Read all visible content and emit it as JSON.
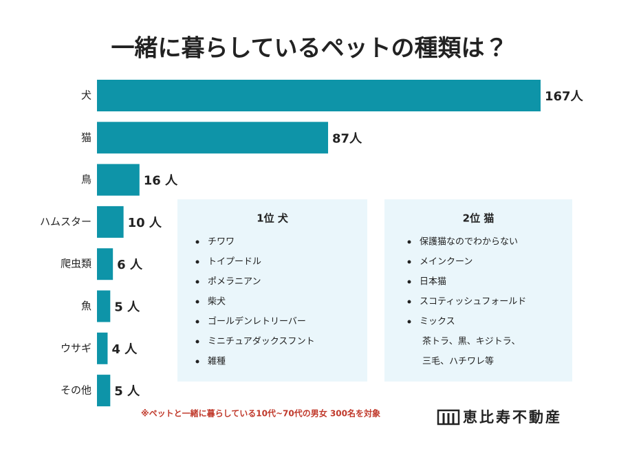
{
  "chart_data": {
    "type": "bar",
    "orientation": "horizontal",
    "title": "一緒に暮らしているペットの種類は？",
    "categories": [
      "犬",
      "猫",
      "鳥",
      "ハムスター",
      "爬虫類",
      "魚",
      "ウサギ",
      "その他"
    ],
    "values": [
      167,
      87,
      16,
      10,
      6,
      5,
      4,
      5
    ],
    "value_labels": [
      "167人",
      "87人",
      "16 人",
      "10 人",
      "6 人",
      "5 人",
      "4 人",
      "5 人"
    ],
    "color": "#0e94a8"
  },
  "panels": [
    {
      "title": "1位 犬",
      "items": [
        "チワワ",
        "トイプードル",
        "ポメラニアン",
        "柴犬",
        "ゴールデンレトリーバー",
        "ミニチュアダックスフント",
        "雑種"
      ],
      "notes": []
    },
    {
      "title": "2位 猫",
      "items": [
        "保護猫なのでわからない",
        "メインクーン",
        "日本猫",
        "スコティッシュフォールド",
        "ミックス"
      ],
      "notes": [
        "茶トラ、黒、キジトラ、",
        "三毛、ハチワレ等"
      ]
    }
  ],
  "footnote": "※ペットと一緒に暮らしている10代~70代の男女 300名を対象",
  "logo": "恵比寿不動産"
}
